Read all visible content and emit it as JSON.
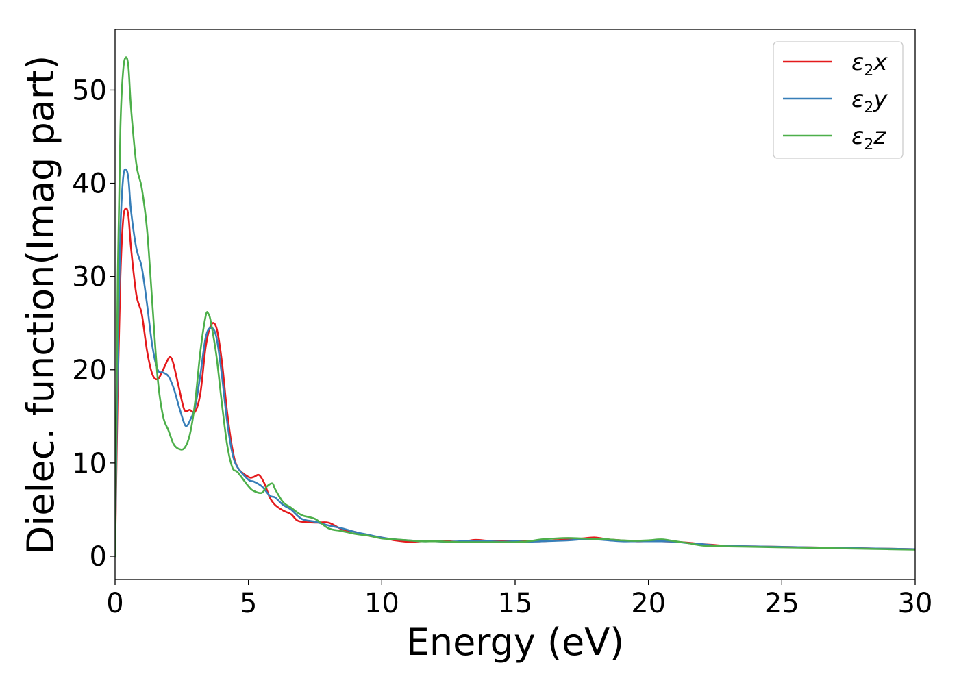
{
  "chart_data": {
    "type": "line",
    "title": "",
    "xlabel": "Energy (eV)",
    "ylabel": "Dielec. function(Imag part)",
    "xlim": [
      0,
      30
    ],
    "ylim": [
      -2.5,
      56.5
    ],
    "xticks": [
      0,
      5,
      10,
      15,
      20,
      25,
      30
    ],
    "yticks": [
      0,
      10,
      20,
      30,
      40,
      50
    ],
    "grid": false,
    "legend_position": "top-right",
    "series": [
      {
        "name": "ε2x",
        "label_base": "ε",
        "label_sub": "2",
        "label_var": "x",
        "color": "#e41a1c",
        "x": [
          0,
          0.1,
          0.2,
          0.3,
          0.4,
          0.5,
          0.6,
          0.8,
          1.0,
          1.2,
          1.4,
          1.6,
          1.8,
          2.0,
          2.1,
          2.2,
          2.4,
          2.6,
          2.8,
          3.0,
          3.2,
          3.4,
          3.6,
          3.8,
          4.0,
          4.2,
          4.4,
          4.6,
          5.0,
          5.2,
          5.4,
          5.6,
          5.8,
          6.0,
          6.3,
          6.6,
          6.8,
          7.0,
          7.5,
          8.0,
          8.5,
          9.0,
          9.5,
          10.0,
          10.5,
          11.0,
          11.5,
          12.0,
          12.5,
          13.0,
          13.5,
          14.0,
          14.5,
          15.0,
          15.5,
          16.0,
          16.5,
          17.0,
          17.5,
          18.0,
          18.5,
          19.0,
          19.5,
          20.0,
          20.5,
          21.0,
          21.5,
          22.0,
          22.5,
          23.0,
          24.0,
          25.0,
          26.0,
          27.0,
          28.0,
          29.0,
          30.0
        ],
        "y": [
          0,
          18,
          30,
          36,
          37.3,
          36.5,
          33,
          28,
          26,
          22,
          19.5,
          19,
          20,
          21.2,
          21.3,
          20.5,
          18,
          15.7,
          15.7,
          15.5,
          17.5,
          22.5,
          24.8,
          24.5,
          21,
          15.5,
          11.5,
          9.5,
          8.5,
          8.5,
          8.7,
          7.8,
          6.3,
          5.5,
          4.9,
          4.5,
          3.9,
          3.7,
          3.6,
          3.6,
          2.9,
          2.6,
          2.2,
          2.0,
          1.7,
          1.55,
          1.6,
          1.65,
          1.6,
          1.55,
          1.75,
          1.65,
          1.6,
          1.6,
          1.6,
          1.6,
          1.7,
          1.8,
          1.9,
          2.0,
          1.8,
          1.7,
          1.6,
          1.6,
          1.6,
          1.55,
          1.45,
          1.3,
          1.2,
          1.1,
          1.05,
          1.0,
          0.95,
          0.9,
          0.85,
          0.8,
          0.75
        ]
      },
      {
        "name": "ε2y",
        "label_base": "ε",
        "label_sub": "2",
        "label_var": "y",
        "color": "#377eb8",
        "x": [
          0,
          0.1,
          0.2,
          0.3,
          0.4,
          0.5,
          0.6,
          0.8,
          1.0,
          1.2,
          1.4,
          1.6,
          1.8,
          2.0,
          2.2,
          2.4,
          2.6,
          2.7,
          2.8,
          3.0,
          3.2,
          3.4,
          3.6,
          3.8,
          4.0,
          4.2,
          4.4,
          4.6,
          5.0,
          5.2,
          5.5,
          5.8,
          6.0,
          6.3,
          6.6,
          7.0,
          7.5,
          8.0,
          8.5,
          9.0,
          9.5,
          10.0,
          10.5,
          11.0,
          11.5,
          12.0,
          12.5,
          13.0,
          13.5,
          14.0,
          14.5,
          15.0,
          15.5,
          16.0,
          16.5,
          17.0,
          17.5,
          18.0,
          18.5,
          19.0,
          19.5,
          20.0,
          20.5,
          21.0,
          21.5,
          22.0,
          22.5,
          23.0,
          24.0,
          25.0,
          26.0,
          27.0,
          28.0,
          29.0,
          30.0
        ],
        "y": [
          0,
          22,
          35,
          40.5,
          41.5,
          40.5,
          37,
          33,
          31,
          27,
          22.5,
          20,
          19.7,
          19.3,
          18,
          16,
          14.2,
          14.0,
          14.5,
          16,
          19.5,
          23.5,
          24.5,
          23.5,
          19.5,
          14.5,
          11,
          9.5,
          8.2,
          8.0,
          7.5,
          6.5,
          6.3,
          5.5,
          5.0,
          4.0,
          3.7,
          3.3,
          3.0,
          2.6,
          2.3,
          2.0,
          1.8,
          1.7,
          1.6,
          1.6,
          1.55,
          1.6,
          1.6,
          1.6,
          1.55,
          1.6,
          1.55,
          1.6,
          1.65,
          1.7,
          1.8,
          1.8,
          1.7,
          1.6,
          1.6,
          1.6,
          1.6,
          1.55,
          1.4,
          1.3,
          1.15,
          1.1,
          1.05,
          1.0,
          0.95,
          0.9,
          0.85,
          0.8,
          0.75
        ]
      },
      {
        "name": "ε2z",
        "label_base": "ε",
        "label_sub": "2",
        "label_var": "z",
        "color": "#4daf4a",
        "x": [
          0,
          0.1,
          0.2,
          0.3,
          0.4,
          0.5,
          0.6,
          0.8,
          1.0,
          1.2,
          1.4,
          1.6,
          1.8,
          2.0,
          2.2,
          2.4,
          2.6,
          2.8,
          3.0,
          3.2,
          3.4,
          3.5,
          3.6,
          3.8,
          4.0,
          4.2,
          4.4,
          4.6,
          5.0,
          5.2,
          5.5,
          5.7,
          5.9,
          6.0,
          6.3,
          6.6,
          7.0,
          7.5,
          8.0,
          8.5,
          9.0,
          9.5,
          10.0,
          10.5,
          11.0,
          11.5,
          12.0,
          12.5,
          13.0,
          13.5,
          14.0,
          14.5,
          15.0,
          15.5,
          16.0,
          16.5,
          17.0,
          17.5,
          18.0,
          18.5,
          19.0,
          19.5,
          20.0,
          20.5,
          21.0,
          21.5,
          22.0,
          22.5,
          23.0,
          24.0,
          25.0,
          26.0,
          27.0,
          28.0,
          29.0,
          30.0
        ],
        "y": [
          0,
          30,
          46,
          52,
          53.5,
          52.5,
          48,
          42,
          39.5,
          35,
          27,
          19,
          15,
          13.5,
          12,
          11.5,
          11.6,
          13,
          16.5,
          22,
          25.8,
          26,
          25,
          21.5,
          16.5,
          12,
          9.5,
          9.0,
          7.5,
          7.0,
          6.8,
          7.5,
          7.8,
          7.2,
          5.8,
          5.2,
          4.4,
          4.0,
          3.0,
          2.7,
          2.4,
          2.2,
          1.9,
          1.8,
          1.7,
          1.6,
          1.6,
          1.55,
          1.5,
          1.5,
          1.5,
          1.5,
          1.5,
          1.6,
          1.8,
          1.9,
          1.95,
          1.9,
          1.85,
          1.8,
          1.7,
          1.65,
          1.7,
          1.8,
          1.6,
          1.4,
          1.15,
          1.1,
          1.05,
          1.0,
          0.95,
          0.9,
          0.85,
          0.8,
          0.75,
          0.7
        ]
      }
    ]
  }
}
